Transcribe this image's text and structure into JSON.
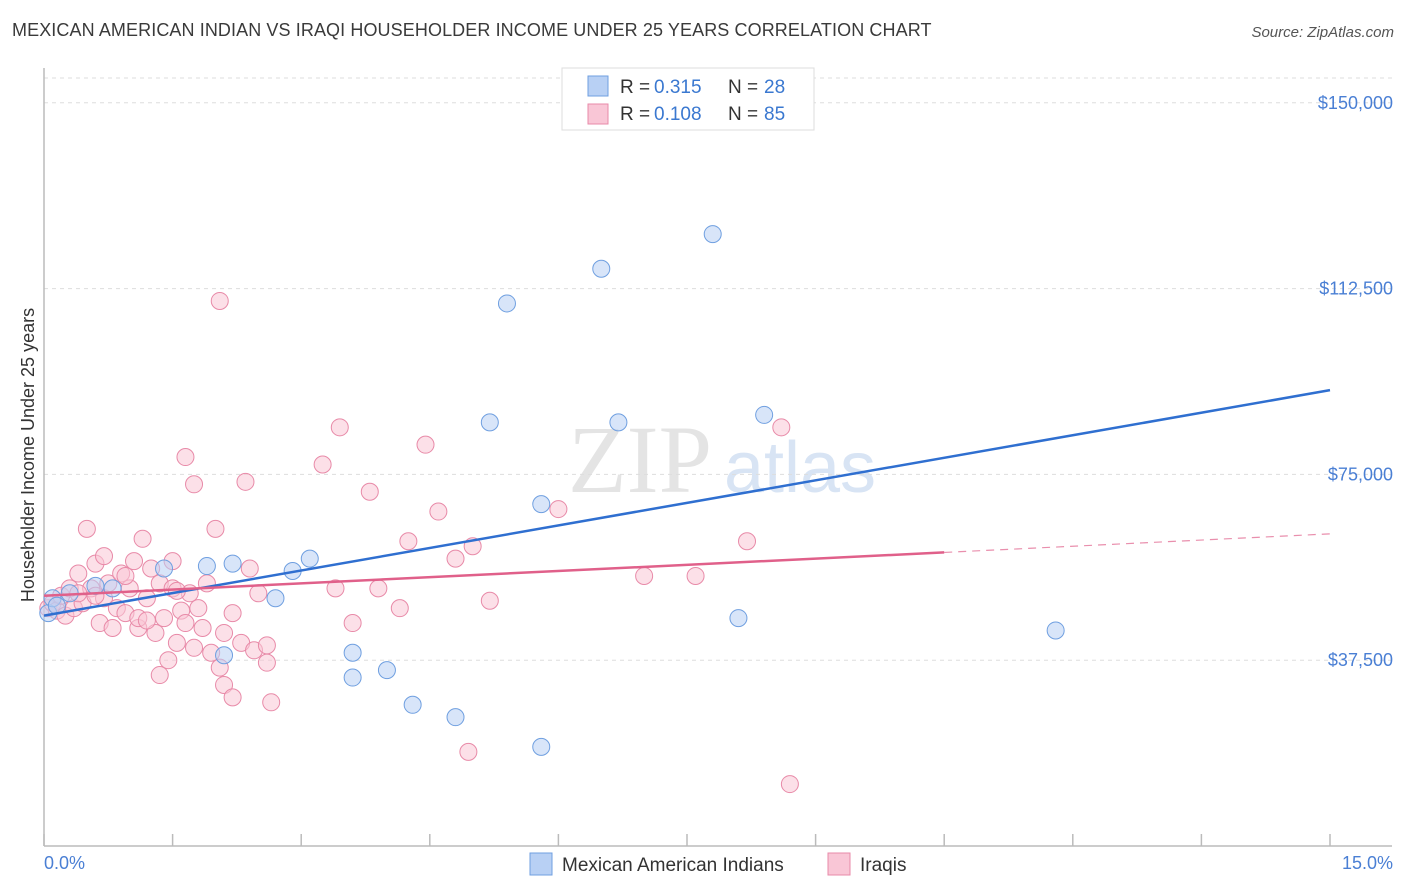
{
  "header": {
    "title": "MEXICAN AMERICAN INDIAN VS IRAQI HOUSEHOLDER INCOME UNDER 25 YEARS CORRELATION CHART",
    "source": "Source: ZipAtlas.com"
  },
  "watermark": {
    "zip": "ZIP",
    "atlas": "atlas"
  },
  "colors": {
    "blue_fill": "#b8d0f4",
    "blue_stroke": "#6f9fe0",
    "blue_line": "#2f6fd0",
    "pink_fill": "#f9c6d6",
    "pink_stroke": "#e88aa8",
    "pink_line": "#e0608a",
    "tick_text": "#4a7fd4",
    "grid": "#dddddd"
  },
  "legend_top": [
    {
      "r_label": "R =",
      "r_value": "0.315",
      "n_label": "N =",
      "n_value": "28",
      "series": "blue"
    },
    {
      "r_label": "R =",
      "r_value": "0.108",
      "n_label": "N =",
      "n_value": "85",
      "series": "pink"
    }
  ],
  "chart_data": {
    "type": "scatter",
    "title": "MEXICAN AMERICAN INDIAN VS IRAQI HOUSEHOLDER INCOME UNDER 25 YEARS CORRELATION CHART",
    "xlabel": "",
    "ylabel": "Householder Income Under 25 years",
    "xlim": [
      0,
      15
    ],
    "ylim": [
      0,
      155000
    ],
    "x_tick_labels": [
      "0.0%",
      "15.0%"
    ],
    "y_ticks": [
      37500,
      75000,
      112500,
      150000
    ],
    "y_tick_labels": [
      "$37,500",
      "$75,000",
      "$112,500",
      "$150,000"
    ],
    "grid": true,
    "legend": [
      "Mexican American Indians",
      "Iraqis"
    ],
    "series": [
      {
        "name": "Mexican American Indians",
        "color": "blue",
        "r": 0.315,
        "n": 28,
        "trend": {
          "x": [
            0,
            15
          ],
          "y": [
            46500,
            92000
          ],
          "dashed_from": null
        },
        "points": [
          [
            0.05,
            47000
          ],
          [
            0.1,
            50000
          ],
          [
            0.15,
            48500
          ],
          [
            0.3,
            51000
          ],
          [
            0.6,
            52500
          ],
          [
            0.8,
            52000
          ],
          [
            1.4,
            56000
          ],
          [
            1.9,
            56500
          ],
          [
            2.2,
            57000
          ],
          [
            2.1,
            38500
          ],
          [
            2.7,
            50000
          ],
          [
            2.9,
            55500
          ],
          [
            3.1,
            58000
          ],
          [
            3.6,
            39000
          ],
          [
            3.6,
            34000
          ],
          [
            4.0,
            35500
          ],
          [
            4.3,
            28500
          ],
          [
            4.8,
            26000
          ],
          [
            5.2,
            85500
          ],
          [
            5.4,
            109500
          ],
          [
            5.8,
            20000
          ],
          [
            5.8,
            69000
          ],
          [
            6.7,
            85500
          ],
          [
            6.5,
            116500
          ],
          [
            7.8,
            123500
          ],
          [
            8.1,
            46000
          ],
          [
            8.4,
            87000
          ],
          [
            11.8,
            43500
          ]
        ]
      },
      {
        "name": "Iraqis",
        "color": "pink",
        "r": 0.108,
        "n": 85,
        "trend": {
          "x": [
            0,
            15
          ],
          "y": [
            50500,
            63000
          ],
          "dashed_from": 10.5
        },
        "points": [
          [
            0.05,
            48000
          ],
          [
            0.1,
            49000
          ],
          [
            0.15,
            47500
          ],
          [
            0.2,
            50500
          ],
          [
            0.25,
            46500
          ],
          [
            0.3,
            52000
          ],
          [
            0.35,
            48000
          ],
          [
            0.4,
            55000
          ],
          [
            0.45,
            49000
          ],
          [
            0.5,
            64000
          ],
          [
            0.55,
            52000
          ],
          [
            0.6,
            57000
          ],
          [
            0.65,
            45000
          ],
          [
            0.7,
            50000
          ],
          [
            0.75,
            53000
          ],
          [
            0.8,
            44000
          ],
          [
            0.85,
            48000
          ],
          [
            0.9,
            55000
          ],
          [
            0.95,
            47000
          ],
          [
            1.0,
            52000
          ],
          [
            1.05,
            57500
          ],
          [
            1.1,
            44000
          ],
          [
            1.15,
            62000
          ],
          [
            1.2,
            50000
          ],
          [
            1.25,
            56000
          ],
          [
            1.3,
            43000
          ],
          [
            1.35,
            53000
          ],
          [
            1.4,
            46000
          ],
          [
            1.45,
            37500
          ],
          [
            1.5,
            52000
          ],
          [
            1.55,
            41000
          ],
          [
            1.6,
            47500
          ],
          [
            1.65,
            45000
          ],
          [
            1.7,
            51000
          ],
          [
            1.75,
            40000
          ],
          [
            1.8,
            48000
          ],
          [
            1.85,
            44000
          ],
          [
            1.9,
            53000
          ],
          [
            1.95,
            39000
          ],
          [
            2.0,
            64000
          ],
          [
            2.05,
            36000
          ],
          [
            2.1,
            43000
          ],
          [
            2.2,
            47000
          ],
          [
            2.3,
            41000
          ],
          [
            2.35,
            73500
          ],
          [
            2.4,
            56000
          ],
          [
            2.45,
            39500
          ],
          [
            2.5,
            51000
          ],
          [
            2.6,
            37000
          ],
          [
            2.65,
            29000
          ],
          [
            2.1,
            32500
          ],
          [
            2.2,
            30000
          ],
          [
            1.35,
            34500
          ],
          [
            1.75,
            73000
          ],
          [
            1.65,
            78500
          ],
          [
            2.05,
            110000
          ],
          [
            3.25,
            77000
          ],
          [
            3.45,
            84500
          ],
          [
            3.6,
            45000
          ],
          [
            3.8,
            71500
          ],
          [
            3.9,
            52000
          ],
          [
            4.15,
            48000
          ],
          [
            4.25,
            61500
          ],
          [
            4.45,
            81000
          ],
          [
            4.6,
            67500
          ],
          [
            4.8,
            58000
          ],
          [
            4.95,
            19000
          ],
          [
            5.0,
            60500
          ],
          [
            5.2,
            49500
          ],
          [
            6.0,
            68000
          ],
          [
            7.0,
            54500
          ],
          [
            7.6,
            54500
          ],
          [
            8.2,
            61500
          ],
          [
            8.6,
            84500
          ],
          [
            8.7,
            12500
          ],
          [
            1.1,
            46000
          ],
          [
            1.5,
            57500
          ],
          [
            0.7,
            58500
          ],
          [
            1.2,
            45500
          ],
          [
            1.55,
            51500
          ],
          [
            0.95,
            54500
          ],
          [
            3.4,
            52000
          ],
          [
            0.4,
            51000
          ],
          [
            0.6,
            50500
          ],
          [
            2.6,
            40500
          ]
        ]
      }
    ]
  }
}
